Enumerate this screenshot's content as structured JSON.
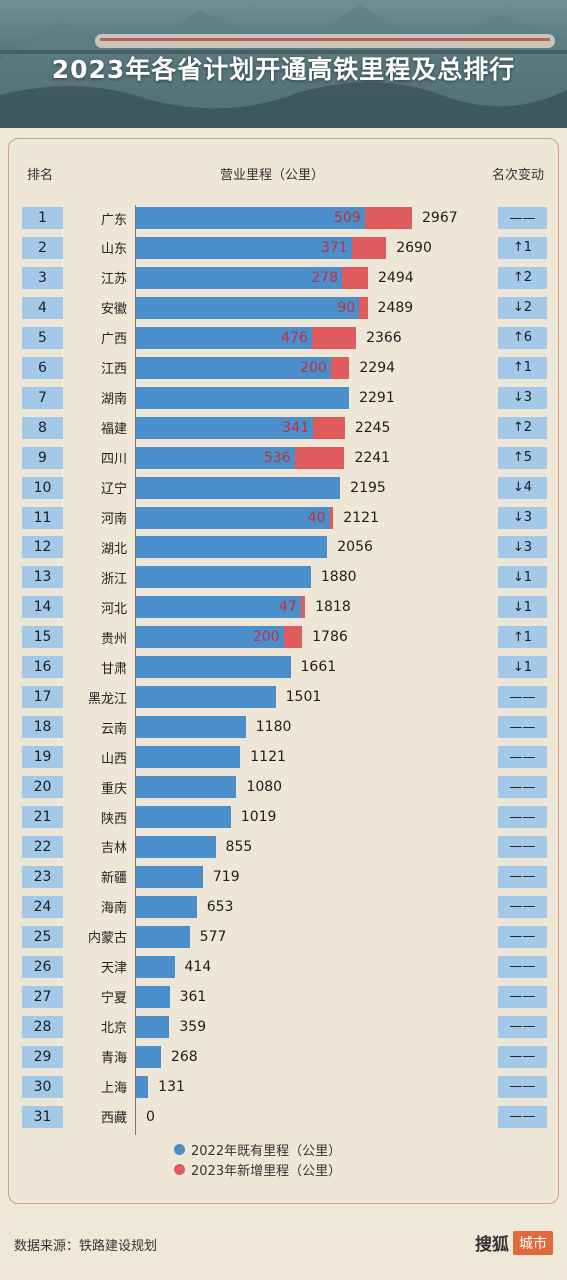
{
  "title": "2023年各省计划开通高铁里程及总排行",
  "headers": {
    "rank": "排名",
    "mileage": "营业里程（公里）",
    "change": "名次变动"
  },
  "chart_data": {
    "type": "bar",
    "orientation": "horizontal",
    "stacked": true,
    "title": "2023年各省计划开通高铁里程及总排行",
    "xlabel": "营业里程（公里）",
    "series": [
      {
        "name": "2022年既有里程（公里）",
        "color": "#4a8fcc"
      },
      {
        "name": "2023年新增里程（公里）",
        "color": "#e05c5c"
      }
    ],
    "rows": [
      {
        "rank": "1",
        "province": "广东",
        "total": 2967,
        "added": 509,
        "change": "——"
      },
      {
        "rank": "2",
        "province": "山东",
        "total": 2690,
        "added": 371,
        "change": "↑1"
      },
      {
        "rank": "3",
        "province": "江苏",
        "total": 2494,
        "added": 278,
        "change": "↑2"
      },
      {
        "rank": "4",
        "province": "安徽",
        "total": 2489,
        "added": 90,
        "change": "↓2"
      },
      {
        "rank": "5",
        "province": "广西",
        "total": 2366,
        "added": 476,
        "change": "↑6"
      },
      {
        "rank": "6",
        "province": "江西",
        "total": 2294,
        "added": 200,
        "change": "↑1"
      },
      {
        "rank": "7",
        "province": "湖南",
        "total": 2291,
        "added": 0,
        "change": "↓3"
      },
      {
        "rank": "8",
        "province": "福建",
        "total": 2245,
        "added": 341,
        "change": "↑2"
      },
      {
        "rank": "9",
        "province": "四川",
        "total": 2241,
        "added": 536,
        "change": "↑5"
      },
      {
        "rank": "10",
        "province": "辽宁",
        "total": 2195,
        "added": 0,
        "change": "↓4"
      },
      {
        "rank": "11",
        "province": "河南",
        "total": 2121,
        "added": 40,
        "change": "↓3"
      },
      {
        "rank": "12",
        "province": "湖北",
        "total": 2056,
        "added": 0,
        "change": "↓3"
      },
      {
        "rank": "13",
        "province": "浙江",
        "total": 1880,
        "added": 0,
        "change": "↓1"
      },
      {
        "rank": "14",
        "province": "河北",
        "total": 1818,
        "added": 47,
        "change": "↓1"
      },
      {
        "rank": "15",
        "province": "贵州",
        "total": 1786,
        "added": 200,
        "change": "↑1"
      },
      {
        "rank": "16",
        "province": "甘肃",
        "total": 1661,
        "added": 0,
        "change": "↓1"
      },
      {
        "rank": "17",
        "province": "黑龙江",
        "total": 1501,
        "added": 0,
        "change": "——"
      },
      {
        "rank": "18",
        "province": "云南",
        "total": 1180,
        "added": 0,
        "change": "——"
      },
      {
        "rank": "19",
        "province": "山西",
        "total": 1121,
        "added": 0,
        "change": "——"
      },
      {
        "rank": "20",
        "province": "重庆",
        "total": 1080,
        "added": 0,
        "change": "——"
      },
      {
        "rank": "21",
        "province": "陕西",
        "total": 1019,
        "added": 0,
        "change": "——"
      },
      {
        "rank": "22",
        "province": "吉林",
        "total": 855,
        "added": 0,
        "change": "——"
      },
      {
        "rank": "23",
        "province": "新疆",
        "total": 719,
        "added": 0,
        "change": "——"
      },
      {
        "rank": "24",
        "province": "海南",
        "total": 653,
        "added": 0,
        "change": "——"
      },
      {
        "rank": "25",
        "province": "内蒙古",
        "total": 577,
        "added": 0,
        "change": "——"
      },
      {
        "rank": "26",
        "province": "天津",
        "total": 414,
        "added": 0,
        "change": "——"
      },
      {
        "rank": "27",
        "province": "宁夏",
        "total": 361,
        "added": 0,
        "change": "——"
      },
      {
        "rank": "28",
        "province": "北京",
        "total": 359,
        "added": 0,
        "change": "——"
      },
      {
        "rank": "29",
        "province": "青海",
        "total": 268,
        "added": 0,
        "change": "——"
      },
      {
        "rank": "30",
        "province": "上海",
        "total": 131,
        "added": 0,
        "change": "——"
      },
      {
        "rank": "31",
        "province": "西藏",
        "total": 0,
        "added": 0,
        "change": "——"
      }
    ]
  },
  "legend": {
    "existing": "2022年既有里程（公里）",
    "added": "2023年新增里程（公里）"
  },
  "footer": {
    "source": "数据来源：铁路建设规划",
    "brand": "搜狐",
    "brand_tag": "城市"
  }
}
